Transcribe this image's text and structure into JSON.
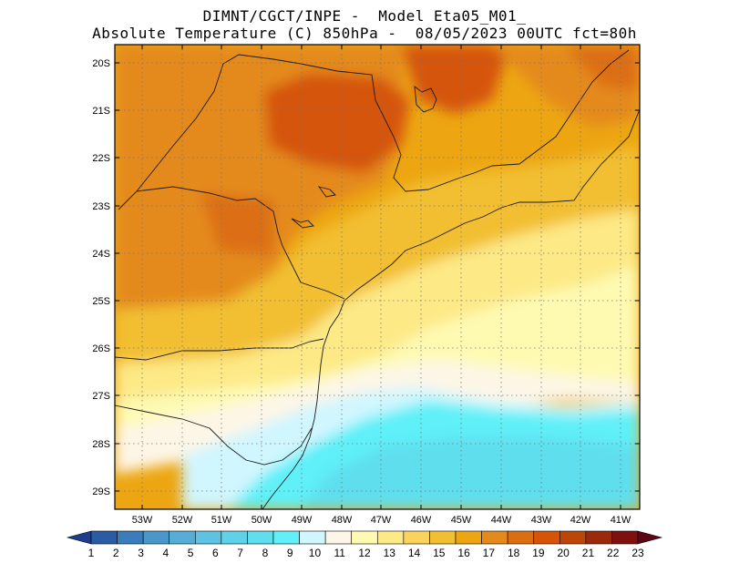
{
  "title": {
    "line1": "DIMNT/CGCT/INPE -  Model Eta05_M01_",
    "line2": "Absolute Temperature (C) 850hPa -  08/05/2023 00UTC fct=80h"
  },
  "map": {
    "region": "South-Southeast Brazil",
    "lat_labels": [
      "20S",
      "21S",
      "22S",
      "23S",
      "24S",
      "25S",
      "26S",
      "27S",
      "28S",
      "29S"
    ],
    "lon_labels": [
      "53W",
      "52W",
      "51W",
      "50W",
      "49W",
      "48W",
      "47W",
      "46W",
      "45W",
      "44W",
      "43W",
      "42W",
      "41W"
    ],
    "lat_range": [
      -29.4,
      -19.6
    ],
    "lon_range": [
      -53.6,
      -40.5
    ]
  },
  "colorbar": {
    "labels": [
      "1",
      "2",
      "3",
      "4",
      "5",
      "6",
      "7",
      "8",
      "9",
      "10",
      "11",
      "12",
      "13",
      "14",
      "15",
      "16",
      "17",
      "18",
      "19",
      "20",
      "21",
      "22",
      "23"
    ],
    "colors": [
      "#1f3d8a",
      "#2a5ba4",
      "#3a7cbc",
      "#4a97cc",
      "#56aed8",
      "#5ec3e2",
      "#5fd2e8",
      "#5fdfee",
      "#5ff0f8",
      "#d0f6fe",
      "#fdf6e6",
      "#fefab2",
      "#fde986",
      "#f9d45c",
      "#f2bf32",
      "#eda612",
      "#e48a1c",
      "#dc6e12",
      "#d55408",
      "#bd4508",
      "#9a2a0a",
      "#7e1010",
      "#5c0618"
    ]
  }
}
